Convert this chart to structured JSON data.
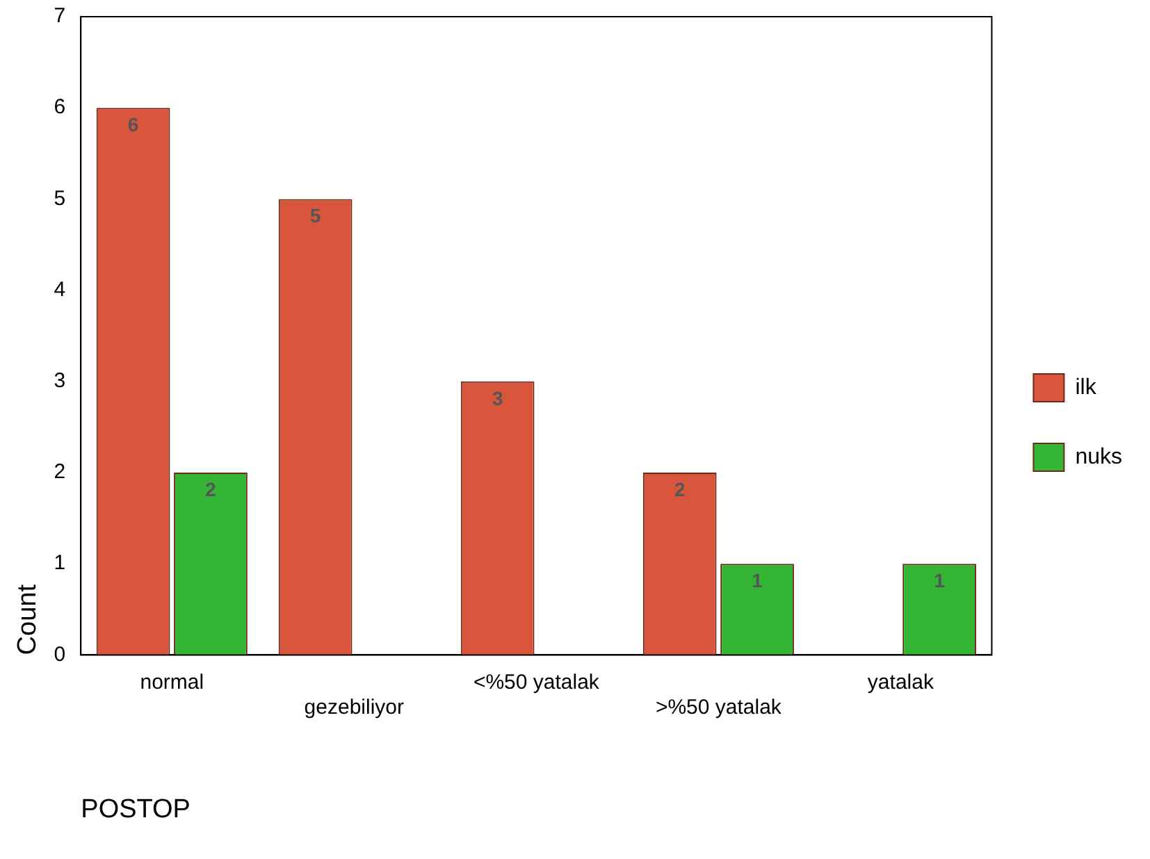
{
  "chart_data": {
    "type": "bar",
    "xlabel": "POSTOP",
    "ylabel": "Count",
    "categories": [
      "normal",
      "gezebiliyor",
      "<%50 yatalak",
      ">%50 yatalak",
      "yatalak"
    ],
    "series": [
      {
        "name": "ilk",
        "color": "#d9553b",
        "values": [
          6,
          5,
          3,
          2,
          null
        ]
      },
      {
        "name": "nuks",
        "color": "#35b535",
        "values": [
          2,
          null,
          null,
          1,
          1
        ]
      }
    ],
    "ylim": [
      0,
      7
    ],
    "yticks": [
      0,
      1,
      2,
      3,
      4,
      5,
      6,
      7
    ],
    "grid": false,
    "legend": "right",
    "data_labels": true
  }
}
